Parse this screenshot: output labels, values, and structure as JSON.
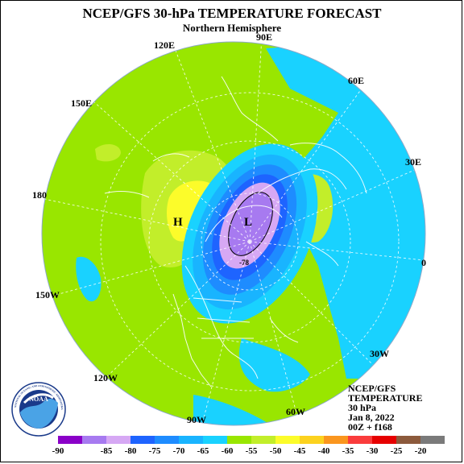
{
  "header": {
    "title": "NCEP/GFS 30-hPa TEMPERATURE FORECAST",
    "subtitle": "Northern Hemisphere"
  },
  "longitudes": [
    "90E",
    "60E",
    "30E",
    "0",
    "30W",
    "60W",
    "90W",
    "120W",
    "150W",
    "180",
    "150E",
    "120E"
  ],
  "pressure_labels": {
    "high": "H",
    "low": "L",
    "contour": "-78"
  },
  "info_block": {
    "line1": "NCEP/GFS",
    "line2": "TEMPERATURE",
    "line3": "30 hPa",
    "line4": "Jan 8, 2022",
    "line5": "00Z + f168"
  },
  "logo": {
    "text": "NOAA",
    "ring_text": "NATIONAL OCEANIC AND ATMOSPHERIC ADMINISTRATION · U.S. DEPARTMENT OF COMMERCE"
  },
  "legend": {
    "colors": [
      "#8a00c8",
      "#a77af0",
      "#d6a8f4",
      "#1e64ff",
      "#1e8cff",
      "#19b4ff",
      "#19d2ff",
      "#99e600",
      "#c2ee2a",
      "#fcfc2a",
      "#fcd21e",
      "#fa961e",
      "#fa3c3c",
      "#e60000",
      "#8c5a3c",
      "#7a7a7a"
    ],
    "labels": [
      "-90",
      "-85",
      "-80",
      "-75",
      "-70",
      "-65",
      "-60",
      "-55",
      "-50",
      "-45",
      "-40",
      "-35",
      "-30",
      "-25",
      "-20"
    ]
  },
  "palette": {
    "dark_blue": "#1e64ff",
    "blue": "#1e8cff",
    "mid_blue": "#19b4ff",
    "light_blue": "#19d2ff",
    "green": "#99e600",
    "light_green": "#c2ee2a",
    "yellow": "#fcfc2a",
    "orange": "#fcd21e",
    "purple": "#a77af0",
    "lavender": "#d6a8f4"
  }
}
